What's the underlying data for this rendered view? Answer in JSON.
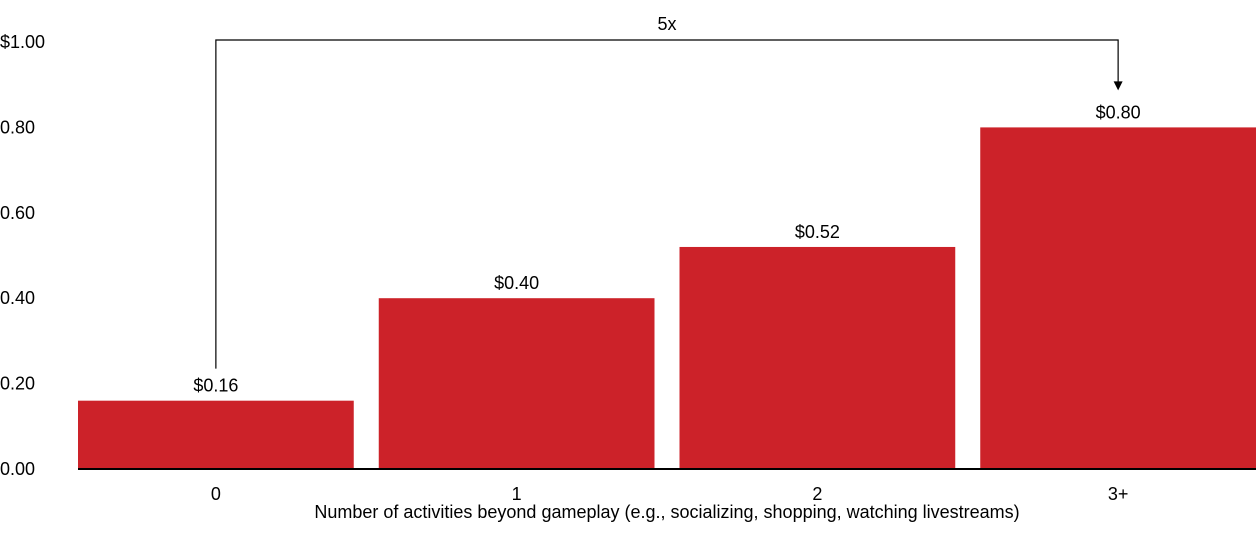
{
  "chart_data": {
    "type": "bar",
    "categories": [
      "0",
      "1",
      "2",
      "3+"
    ],
    "values": [
      0.16,
      0.4,
      0.52,
      0.8
    ],
    "data_labels": [
      "$0.16",
      "$0.40",
      "$0.52",
      "$0.80"
    ],
    "title": "",
    "xlabel": "Number of activities beyond gameplay (e.g., socializing, shopping, watching livestreams)",
    "ylabel": "",
    "ylim": [
      0,
      1.0
    ],
    "y_ticks": [
      {
        "value": 0.0,
        "label": "0.00"
      },
      {
        "value": 0.2,
        "label": "0.20"
      },
      {
        "value": 0.4,
        "label": "0.40"
      },
      {
        "value": 0.6,
        "label": "0.60"
      },
      {
        "value": 0.8,
        "label": "0.80"
      },
      {
        "value": 1.0,
        "label": "$1.00"
      }
    ],
    "grid": false,
    "bar_color": "#CC2229",
    "annotation": {
      "from_category": "0",
      "to_category": "3+",
      "label": "5x",
      "style": "bracket-arrow"
    }
  }
}
